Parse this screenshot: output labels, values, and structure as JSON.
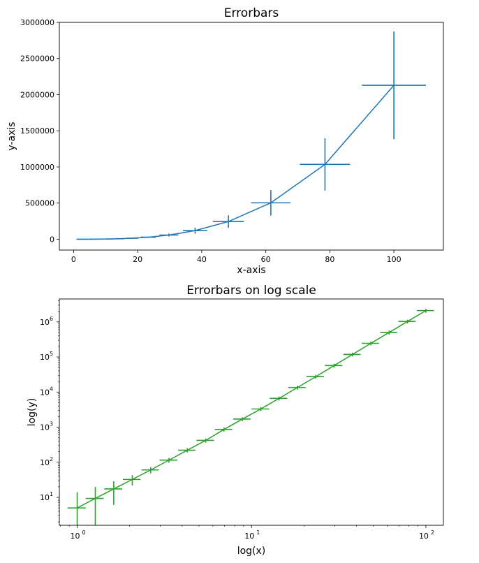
{
  "chart_data": [
    {
      "type": "line",
      "title": "Errorbars",
      "xlabel": "x-axis",
      "ylabel": "y-axis",
      "xscale": "linear",
      "yscale": "linear",
      "xlim": [
        -4.45,
        115.45
      ],
      "ylim": [
        -150000,
        3000000
      ],
      "xticks": [
        0,
        20,
        40,
        60,
        80,
        100
      ],
      "xtick_labels": [
        "0",
        "20",
        "40",
        "60",
        "80",
        "100"
      ],
      "yticks": [
        0,
        500000,
        1000000,
        1500000,
        2000000,
        2500000,
        3000000
      ],
      "ytick_labels": [
        "0",
        "500000",
        "1000000",
        "1500000",
        "2000000",
        "2500000",
        "3000000"
      ],
      "color": "#1f77b4",
      "x": [
        1.0,
        1.27,
        1.62,
        2.07,
        2.64,
        3.36,
        4.28,
        5.46,
        6.95,
        8.86,
        11.29,
        14.38,
        18.33,
        23.36,
        29.76,
        37.93,
        48.33,
        61.58,
        78.48,
        100.0
      ],
      "y": [
        2.4,
        4.9,
        10.1,
        20.8,
        42.7,
        87.8,
        180.6,
        371.4,
        763.9,
        1571.1,
        3231.5,
        6646.8,
        13672,
        28122,
        57843,
        118975,
        244713,
        503346,
        1035300,
        2129500
      ],
      "xerr": [
        0.1,
        0.13,
        0.16,
        0.21,
        0.26,
        0.34,
        0.43,
        0.55,
        0.7,
        0.89,
        1.13,
        1.44,
        1.83,
        2.34,
        2.98,
        3.79,
        4.83,
        6.16,
        7.85,
        10.0
      ],
      "yerr": [
        0.84,
        1.7,
        3.5,
        7.3,
        15,
        31,
        63,
        130,
        267,
        550,
        1131,
        2326,
        4785,
        9843,
        20245,
        41641,
        85650,
        176171,
        362355,
        745325
      ]
    },
    {
      "type": "line",
      "title": "Errorbars on log scale",
      "xlabel": "log(x)",
      "ylabel": "log(y)",
      "xscale": "log",
      "yscale": "log",
      "xlim": [
        0.79,
        126
      ],
      "ylim": [
        1.6,
        4500000
      ],
      "xticks": [
        1,
        10,
        100
      ],
      "xtick_labels": [
        {
          "base": "10",
          "exp": "0"
        },
        {
          "base": "10",
          "exp": "1"
        },
        {
          "base": "10",
          "exp": "2"
        }
      ],
      "yticks": [
        10,
        100,
        1000,
        10000,
        100000,
        1000000
      ],
      "ytick_labels": [
        {
          "base": "10",
          "exp": "1"
        },
        {
          "base": "10",
          "exp": "2"
        },
        {
          "base": "10",
          "exp": "3"
        },
        {
          "base": "10",
          "exp": "4"
        },
        {
          "base": "10",
          "exp": "5"
        },
        {
          "base": "10",
          "exp": "6"
        }
      ],
      "color": "#2ca02c",
      "x": [
        1.0,
        1.27,
        1.62,
        2.07,
        2.64,
        3.36,
        4.28,
        5.46,
        6.95,
        8.86,
        11.29,
        14.38,
        18.33,
        23.36,
        29.76,
        37.93,
        48.33,
        61.58,
        78.48,
        100.0
      ],
      "y": [
        5.0,
        9.3,
        17.4,
        32.4,
        60.5,
        115,
        220,
        420,
        860,
        1700,
        3300,
        6600,
        13500,
        27500,
        57000,
        118000,
        245000,
        500000,
        1030000,
        2100000
      ],
      "xerr": [
        0.12,
        0.15,
        0.19,
        0.24,
        0.3,
        0.39,
        0.49,
        0.63,
        0.8,
        1.02,
        1.3,
        1.65,
        2.1,
        2.7,
        3.4,
        4.3,
        5.5,
        7.0,
        8.9,
        11.3
      ],
      "yerr": [
        9.0,
        10.5,
        11.3,
        10.5,
        12,
        18,
        30,
        55,
        115,
        220,
        440,
        860,
        1750,
        3500,
        7300,
        15000,
        31000,
        64000,
        130000,
        270000
      ]
    }
  ]
}
